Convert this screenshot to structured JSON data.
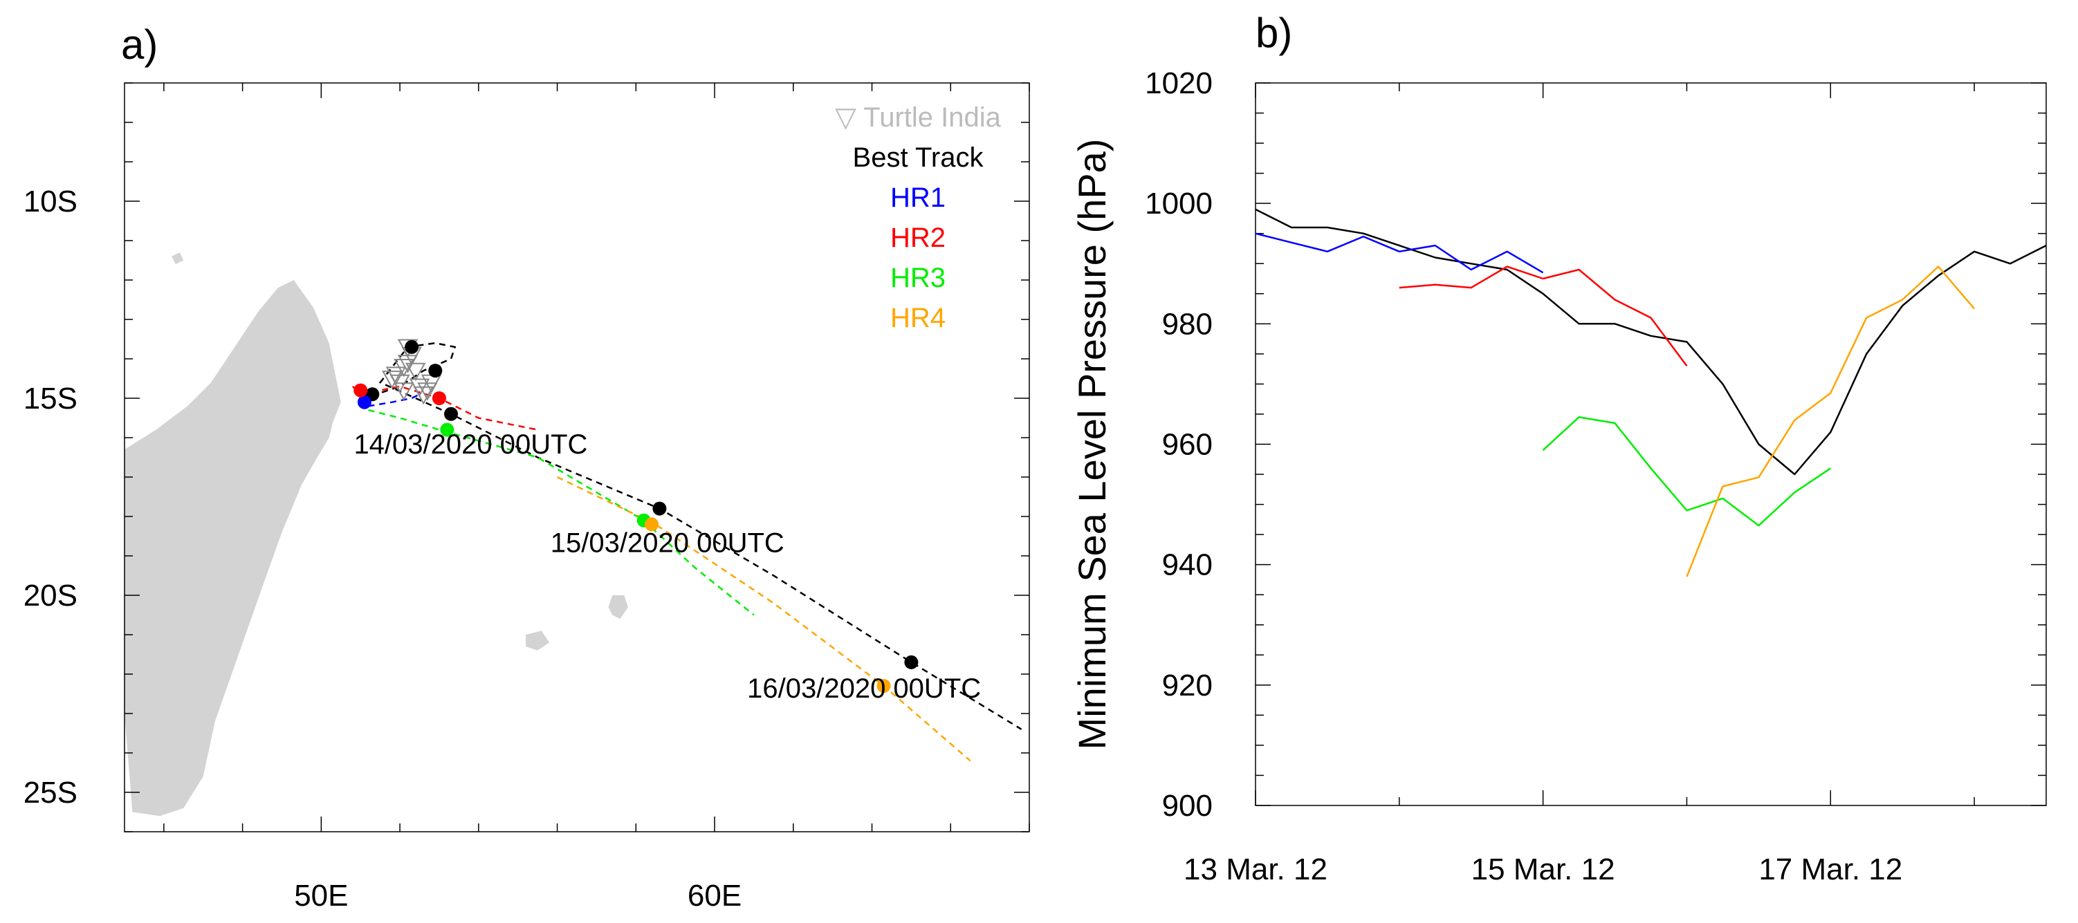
{
  "chart_data": [
    {
      "type": "map",
      "panel_label": "a)",
      "x_ticks": [
        {
          "value": 50,
          "label": "50E"
        },
        {
          "value": 60,
          "label": "60E"
        }
      ],
      "y_ticks": [
        {
          "value": -10,
          "label": "10S"
        },
        {
          "value": -15,
          "label": "15S"
        },
        {
          "value": -20,
          "label": "20S"
        },
        {
          "value": -25,
          "label": "25S"
        }
      ],
      "xlim": [
        45,
        68
      ],
      "ylim": [
        -26,
        -7
      ],
      "legend_position": "top-right",
      "legend": [
        {
          "name": "Turtle India",
          "symbol": "▽",
          "color": "#bbbbbb"
        },
        {
          "name": "Best Track",
          "symbol": "",
          "color": "#000000"
        },
        {
          "name": "HR1",
          "symbol": "",
          "color": "#0000ff"
        },
        {
          "name": "HR2",
          "symbol": "",
          "color": "#ff0000"
        },
        {
          "name": "HR3",
          "symbol": "",
          "color": "#00ee00"
        },
        {
          "name": "HR4",
          "symbol": "",
          "color": "#ffa500"
        }
      ],
      "tracks": [
        {
          "name": "Best Track",
          "color": "#000000",
          "lon": [
            51.0,
            51.4,
            52.0,
            52.6,
            53.3,
            53.4,
            52.9,
            52.2,
            51.5,
            53.3,
            55.5,
            58.6,
            61.5,
            65.0,
            67.8
          ],
          "lat": [
            -15.0,
            -14.9,
            -14.7,
            -14.3,
            -14.0,
            -13.7,
            -13.6,
            -13.7,
            -14.6,
            -15.4,
            -16.5,
            -17.8,
            -19.5,
            -21.7,
            -23.4
          ]
        },
        {
          "name": "HR1",
          "color": "#0000ff",
          "lon": [
            51.0,
            51.2,
            51.8,
            52.3,
            52.5
          ],
          "lat": [
            -15.0,
            -15.2,
            -15.1,
            -15.0,
            -14.9
          ]
        },
        {
          "name": "HR2",
          "color": "#ff0000",
          "lon": [
            50.8,
            51.0,
            52.0,
            53.0,
            54.0,
            55.5
          ],
          "lat": [
            -14.7,
            -14.9,
            -14.7,
            -15.0,
            -15.5,
            -15.8
          ]
        },
        {
          "name": "HR3",
          "color": "#00ee00",
          "lon": [
            51.2,
            52.0,
            53.0,
            55.5,
            58.2,
            59.5,
            61.0
          ],
          "lat": [
            -15.3,
            -15.5,
            -15.8,
            -16.5,
            -18.1,
            -19.3,
            -20.5
          ]
        },
        {
          "name": "HR4",
          "color": "#ffa500",
          "lon": [
            56.0,
            58.5,
            61.5,
            64.3,
            66.5
          ],
          "lat": [
            -17.0,
            -18.2,
            -20.2,
            -22.3,
            -24.2
          ]
        }
      ],
      "markers": [
        {
          "color": "#000000",
          "lon": [
            51.3,
            52.3,
            52.9,
            53.3,
            58.6,
            65.0
          ],
          "lat": [
            -14.9,
            -13.7,
            -14.3,
            -15.4,
            -17.8,
            -21.7
          ]
        },
        {
          "color": "#0000ff",
          "lon": [
            51.1
          ],
          "lat": [
            -15.1
          ]
        },
        {
          "color": "#ff0000",
          "lon": [
            51.0,
            53.0
          ],
          "lat": [
            -14.8,
            -15.0
          ]
        },
        {
          "color": "#00ee00",
          "lon": [
            53.2,
            58.2
          ],
          "lat": [
            -15.8,
            -18.1
          ]
        },
        {
          "color": "#ffa500",
          "lon": [
            58.4,
            64.3
          ],
          "lat": [
            -18.2,
            -22.3
          ]
        }
      ],
      "observations": {
        "name": "Turtle India",
        "symbol": "▽",
        "color": "#888888",
        "lon": [
          52.2,
          52.3,
          52.1,
          51.9,
          52.0,
          52.2,
          52.5,
          52.6,
          52.1,
          51.8,
          52.4,
          52.8,
          52.7
        ],
        "lat": [
          -13.7,
          -13.9,
          -14.2,
          -14.4,
          -14.6,
          -14.1,
          -14.7,
          -14.9,
          -14.8,
          -14.5,
          -14.3,
          -14.6,
          -14.8
        ]
      },
      "annotations": [
        {
          "text": "14/03/2020 00UTC",
          "lon": 53.8,
          "lat": -16.4
        },
        {
          "text": "15/03/2020 00UTC",
          "lon": 58.8,
          "lat": -18.9
        },
        {
          "text": "16/03/2020 00UTC",
          "lon": 63.8,
          "lat": -22.6
        }
      ],
      "land": [
        {
          "name": "Madagascar",
          "lon": [
            49.3,
            49.8,
            50.2,
            50.4,
            50.5,
            50.3,
            50.2,
            49.9,
            49.5,
            49.0,
            48.5,
            47.9,
            47.3,
            47.0,
            46.5,
            45.9,
            45.2,
            45.0,
            45.0,
            45.0,
            45.8,
            46.6,
            47.2,
            47.6,
            48.0,
            48.4,
            48.9
          ],
          "lat": [
            -12.0,
            -12.7,
            -13.6,
            -14.6,
            -15.1,
            -15.6,
            -16.0,
            -16.5,
            -17.2,
            -18.4,
            -19.8,
            -21.5,
            -23.2,
            -24.6,
            -25.4,
            -25.6,
            -25.5,
            -23.0,
            -20.0,
            -16.3,
            -15.8,
            -15.2,
            -14.6,
            -14.0,
            -13.4,
            -12.8,
            -12.2
          ]
        },
        {
          "name": "Mauritius",
          "lon": [
            57.4,
            57.7,
            57.8,
            57.6,
            57.4,
            57.3
          ],
          "lat": [
            -20.0,
            -20.0,
            -20.3,
            -20.6,
            -20.5,
            -20.3
          ]
        },
        {
          "name": "Reunion",
          "lon": [
            55.2,
            55.6,
            55.8,
            55.5,
            55.2
          ],
          "lat": [
            -21.0,
            -20.9,
            -21.2,
            -21.4,
            -21.3
          ]
        },
        {
          "name": "Mayotte",
          "lon": [
            46.2,
            46.4,
            46.5,
            46.3
          ],
          "lat": [
            -11.4,
            -11.3,
            -11.5,
            -11.6
          ]
        }
      ]
    },
    {
      "type": "line",
      "panel_label": "b)",
      "ylabel": "Minimum Sea Level Pressure (hPa)",
      "xlabel": "",
      "ylim": [
        900,
        1020
      ],
      "y_ticks": [
        900,
        920,
        940,
        960,
        980,
        1000,
        1020
      ],
      "xlim_hours": [
        0,
        132
      ],
      "x_ticks": [
        {
          "hour": 0,
          "label": "13 Mar. 12"
        },
        {
          "hour": 48,
          "label": "15 Mar. 12"
        },
        {
          "hour": 96,
          "label": "17 Mar. 12"
        }
      ],
      "x_minor_hours": [
        24,
        72,
        120
      ],
      "series": [
        {
          "name": "Best Track",
          "color": "#000000",
          "hours": [
            0,
            6,
            12,
            18,
            24,
            30,
            36,
            42,
            48,
            54,
            60,
            66,
            72,
            78,
            84,
            90,
            96,
            102,
            108,
            114,
            120,
            126,
            132
          ],
          "values": [
            999,
            996,
            996,
            995,
            993,
            991,
            990,
            989,
            985,
            980,
            980,
            978,
            977,
            970,
            960,
            955,
            962,
            975,
            983,
            988,
            992,
            990,
            993
          ]
        },
        {
          "name": "HR1",
          "color": "#0000ff",
          "hours": [
            0,
            6,
            12,
            18,
            24,
            30,
            36,
            42,
            48
          ],
          "values": [
            995,
            993.5,
            992,
            994.5,
            992,
            993,
            989,
            992,
            988.5
          ]
        },
        {
          "name": "HR2",
          "color": "#ff0000",
          "hours": [
            24,
            30,
            36,
            42,
            48,
            54,
            60,
            66,
            72
          ],
          "values": [
            986,
            986.5,
            986,
            989.5,
            987.5,
            989,
            984,
            981,
            973
          ]
        },
        {
          "name": "HR3",
          "color": "#00ee00",
          "hours": [
            48,
            54,
            60,
            66,
            72,
            78,
            84,
            90,
            96
          ],
          "values": [
            959,
            964.5,
            963.5,
            956,
            949,
            951,
            946.5,
            952,
            956
          ]
        },
        {
          "name": "HR4",
          "color": "#ffa500",
          "hours": [
            72,
            78,
            84,
            90,
            96,
            102,
            108,
            114,
            120
          ],
          "values": [
            938,
            953,
            954.5,
            964,
            968.5,
            981,
            984,
            989.5,
            982.5
          ]
        }
      ]
    }
  ]
}
